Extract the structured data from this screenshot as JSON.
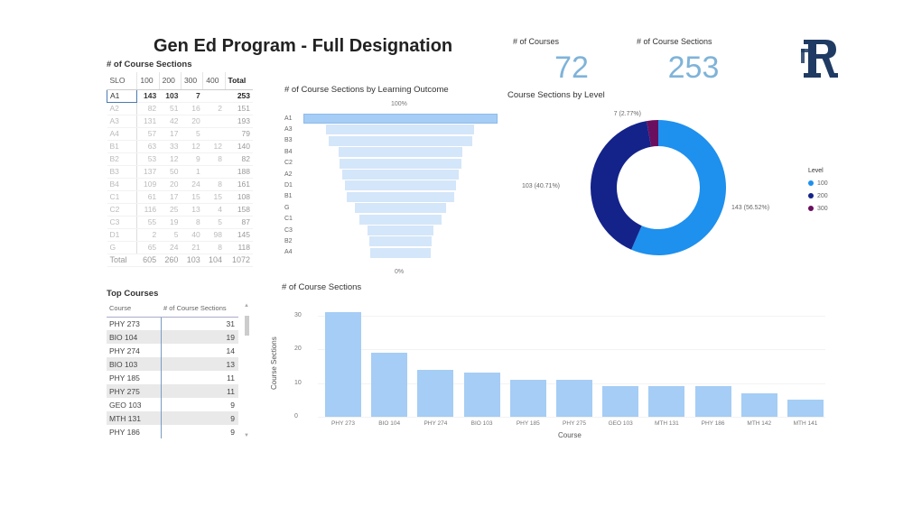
{
  "title": "Gen Ed Program - Full Designation",
  "slo_table": {
    "title": "# of Course Sections",
    "columns": [
      "SLO",
      "100",
      "200",
      "300",
      "400",
      "Total"
    ],
    "rows": [
      [
        "A1",
        "143",
        "103",
        "7",
        "",
        "253"
      ],
      [
        "A2",
        "82",
        "51",
        "16",
        "2",
        "151"
      ],
      [
        "A3",
        "131",
        "42",
        "20",
        "",
        "193"
      ],
      [
        "A4",
        "57",
        "17",
        "5",
        "",
        "79"
      ],
      [
        "B1",
        "63",
        "33",
        "12",
        "12",
        "140"
      ],
      [
        "B2",
        "53",
        "12",
        "9",
        "8",
        "82"
      ],
      [
        "B3",
        "137",
        "50",
        "1",
        "",
        "188"
      ],
      [
        "B4",
        "109",
        "20",
        "24",
        "8",
        "161"
      ],
      [
        "C1",
        "61",
        "17",
        "15",
        "15",
        "108"
      ],
      [
        "C2",
        "116",
        "25",
        "13",
        "4",
        "158"
      ],
      [
        "C3",
        "55",
        "19",
        "8",
        "5",
        "87"
      ],
      [
        "D1",
        "2",
        "5",
        "40",
        "98",
        "145"
      ],
      [
        "G",
        "65",
        "24",
        "21",
        "8",
        "118"
      ]
    ],
    "total": [
      "Total",
      "605",
      "260",
      "103",
      "104",
      "1072"
    ]
  },
  "top_courses": {
    "title": "Top Courses",
    "columns": [
      "Course",
      "# of Course Sections"
    ],
    "rows": [
      [
        "PHY 273",
        "31"
      ],
      [
        "BIO 104",
        "19"
      ],
      [
        "PHY 274",
        "14"
      ],
      [
        "BIO 103",
        "13"
      ],
      [
        "PHY 185",
        "11"
      ],
      [
        "PHY 275",
        "11"
      ],
      [
        "GEO 103",
        "9"
      ],
      [
        "MTH 131",
        "9"
      ],
      [
        "PHY 186",
        "9"
      ]
    ]
  },
  "kpis": [
    {
      "label": "# of Courses",
      "value": "72"
    },
    {
      "label": "# of Course Sections",
      "value": "253"
    }
  ],
  "colors": {
    "accent": "#7fb3d9",
    "bar": "#a5cdf5",
    "funnel": "#d4e6f9",
    "level100": "#1e90ee",
    "level200": "#14238a",
    "level300": "#6a0f60"
  },
  "chart_data": [
    {
      "type": "funnel",
      "title": "# of Course Sections by Learning Outcome",
      "top_label": "100%",
      "bottom_label": "0%",
      "categories": [
        "A1",
        "A3",
        "B3",
        "B4",
        "C2",
        "A2",
        "D1",
        "B1",
        "G",
        "C1",
        "C3",
        "B2",
        "A4"
      ],
      "values": [
        253,
        193,
        188,
        161,
        158,
        151,
        145,
        140,
        118,
        108,
        87,
        82,
        79
      ]
    },
    {
      "type": "pie",
      "title": "Course Sections by Level",
      "legend_title": "Level",
      "legend_position": "right",
      "categories": [
        "100",
        "200",
        "300"
      ],
      "values": [
        143,
        103,
        7
      ],
      "labels": [
        "143 (56.52%)",
        "103 (40.71%)",
        "7 (2.77%)"
      ]
    },
    {
      "type": "bar",
      "title": "# of Course Sections",
      "xlabel": "Course",
      "ylabel": "Course Sections",
      "ylim": [
        0,
        32
      ],
      "yticks": [
        0,
        10,
        20,
        30
      ],
      "categories": [
        "PHY 273",
        "BIO 104",
        "PHY 274",
        "BIO 103",
        "PHY 185",
        "PHY 275",
        "GEO 103",
        "MTH 131",
        "PHY 186",
        "MTH 142",
        "MTH 141"
      ],
      "values": [
        31,
        19,
        14,
        13,
        11,
        11,
        9,
        9,
        9,
        7,
        5
      ]
    }
  ]
}
